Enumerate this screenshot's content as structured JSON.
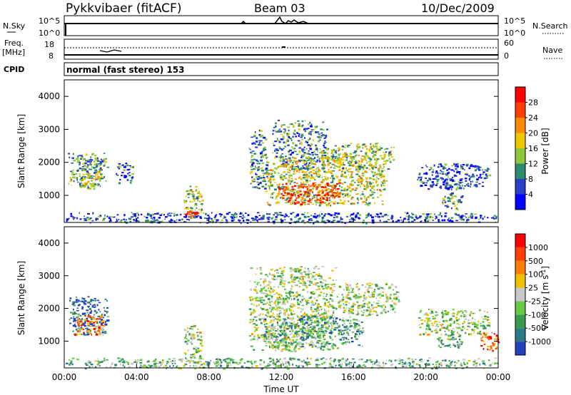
{
  "header": {
    "station": "Pykkvibaer (fitACF)",
    "beam": "Beam 03",
    "date": "10/Dec/2009"
  },
  "top_panels": {
    "nsky_label": "N.Sky",
    "freq_label_1": "Freq.",
    "freq_label_2": "[MHz]",
    "cpid_label": "CPID",
    "left_tick_1e5": "10^5",
    "left_tick_1e0": "10^0",
    "freq_tick_18": "18",
    "freq_tick_8": "8",
    "right_tick_1e5": "10^5",
    "right_tick_1e0": "10^0",
    "nave_tick_60": "60",
    "nave_tick_0": "0",
    "nsearch_label": "N.Search",
    "nave_label": "Nave",
    "cpid_text": "normal (fast stereo) 153"
  },
  "axis_labels": {
    "slant_range": "Slant Range [km]",
    "time": "Time UT",
    "power": "Power [dB]",
    "velocity": "Velocity [m s",
    "velocity_sup": "-1",
    "velocity_close": "]"
  },
  "chart_data": [
    {
      "type": "heatmap",
      "name": "power",
      "x_range_hours": [
        0,
        24
      ],
      "y_range_km": [
        180,
        4500
      ],
      "x_ticks": [
        "00:00",
        "04:00",
        "08:00",
        "12:00",
        "16:00",
        "20:00",
        "00:00"
      ],
      "y_ticks": [
        "1000",
        "2000",
        "3000",
        "4000"
      ],
      "colorbar_ticks": [
        "4",
        "8",
        "12",
        "16",
        "20",
        "24",
        "28"
      ],
      "colorbar_colors": [
        "#0000ff",
        "#2a3ec8",
        "#2b8a6e",
        "#8fc83c",
        "#f0c800",
        "#ff8a00",
        "#ff4000",
        "#ff0000"
      ],
      "regions": [
        {
          "t0": 0.2,
          "t1": 2.4,
          "r0": 1200,
          "r1": 2300,
          "level": 0.35
        },
        {
          "t0": 0.8,
          "t1": 2.0,
          "r0": 1300,
          "r1": 1700,
          "level": 0.55
        },
        {
          "t0": 2.8,
          "t1": 3.8,
          "r0": 1400,
          "r1": 2000,
          "level": 0.2
        },
        {
          "t0": 6.6,
          "t1": 7.6,
          "r0": 300,
          "r1": 1300,
          "level": 0.45
        },
        {
          "t0": 6.6,
          "t1": 7.4,
          "r0": 350,
          "r1": 550,
          "level": 0.95
        },
        {
          "t0": 10.2,
          "t1": 11.2,
          "r0": 1200,
          "r1": 3000,
          "level": 0.3
        },
        {
          "t0": 11.5,
          "t1": 14.5,
          "r0": 1800,
          "r1": 3300,
          "level": 0.3
        },
        {
          "t0": 11.0,
          "t1": 17.8,
          "r0": 700,
          "r1": 2200,
          "level": 0.5
        },
        {
          "t0": 11.8,
          "t1": 15.2,
          "r0": 750,
          "r1": 1400,
          "level": 0.85
        },
        {
          "t0": 14.2,
          "t1": 18.2,
          "r0": 1800,
          "r1": 2600,
          "level": 0.45
        },
        {
          "t0": 19.5,
          "t1": 23.5,
          "r0": 1200,
          "r1": 2000,
          "level": 0.2
        },
        {
          "t0": 20.8,
          "t1": 22.0,
          "r0": 600,
          "r1": 1100,
          "level": 0.35
        },
        {
          "t0": 0,
          "t1": 24,
          "r0": 180,
          "r1": 500,
          "level": 0.2
        }
      ]
    },
    {
      "type": "heatmap",
      "name": "velocity",
      "x_range_hours": [
        0,
        24
      ],
      "y_range_km": [
        180,
        4500
      ],
      "x_ticks": [
        "00:00",
        "04:00",
        "08:00",
        "12:00",
        "16:00",
        "20:00",
        "00:00"
      ],
      "y_ticks": [
        "1000",
        "2000",
        "3000",
        "4000"
      ],
      "colorbar_ticks": [
        "1000",
        "500",
        "100",
        "25",
        "-25",
        "-100",
        "-500",
        "-1000"
      ],
      "colorbar_colors": [
        "#2040c0",
        "#2a7a8a",
        "#3a9a50",
        "#66cc44",
        "#c8c8c8",
        "#f0c000",
        "#ff8000",
        "#ff4000",
        "#ff0000"
      ],
      "regions": [
        {
          "t0": 0.2,
          "t1": 2.4,
          "r0": 1200,
          "r1": 2400,
          "level": 0.12
        },
        {
          "t0": 0.5,
          "t1": 2.2,
          "r0": 1200,
          "r1": 1800,
          "level": 0.75
        },
        {
          "t0": 6.6,
          "t1": 7.6,
          "r0": 300,
          "r1": 1500,
          "level": 0.45
        },
        {
          "t0": 10.2,
          "t1": 15.0,
          "r0": 700,
          "r1": 3300,
          "level": 0.45
        },
        {
          "t0": 11.0,
          "t1": 16.5,
          "r0": 800,
          "r1": 1800,
          "level": 0.3
        },
        {
          "t0": 15.0,
          "t1": 18.5,
          "r0": 1800,
          "r1": 2800,
          "level": 0.45
        },
        {
          "t0": 19.5,
          "t1": 23.5,
          "r0": 1200,
          "r1": 2000,
          "level": 0.45
        },
        {
          "t0": 20.5,
          "t1": 22.0,
          "r0": 800,
          "r1": 1200,
          "level": 0.35
        },
        {
          "t0": 23.0,
          "t1": 24.0,
          "r0": 700,
          "r1": 1300,
          "level": 0.8
        },
        {
          "t0": 0,
          "t1": 24,
          "r0": 180,
          "r1": 500,
          "level": 0.35
        }
      ]
    }
  ]
}
